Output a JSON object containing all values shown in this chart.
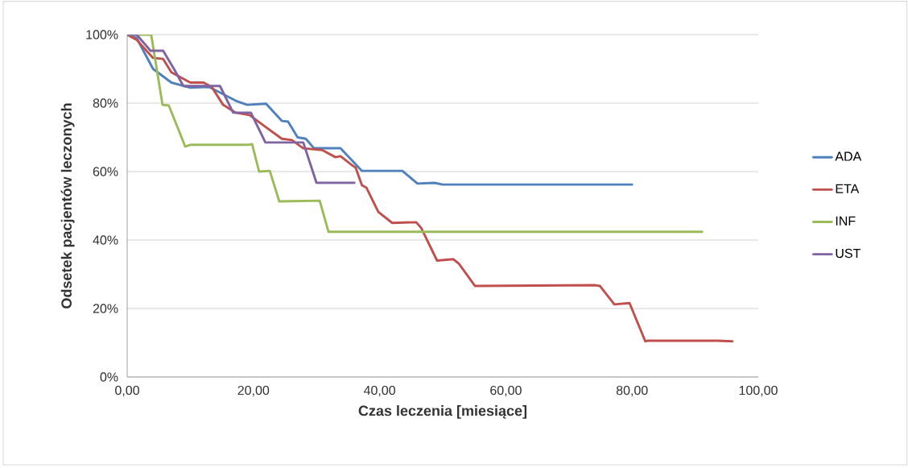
{
  "chart_data": {
    "type": "line",
    "xlabel": "Czas  leczenia [miesiące]",
    "ylabel": "Odsetek pacjentów leczonych",
    "xlim": [
      0,
      100
    ],
    "xticks": [
      {
        "value": 0,
        "label": "0,00"
      },
      {
        "value": 20,
        "label": "20,00"
      },
      {
        "value": 40,
        "label": "40,00"
      },
      {
        "value": 60,
        "label": "60,00"
      },
      {
        "value": 80,
        "label": "80,00"
      },
      {
        "value": 100,
        "label": "100,00"
      }
    ],
    "ylim": [
      0,
      100
    ],
    "yticks": [
      {
        "value": 0,
        "label": "0%"
      },
      {
        "value": 20,
        "label": "20%"
      },
      {
        "value": 40,
        "label": "40%"
      },
      {
        "value": 60,
        "label": "60%"
      },
      {
        "value": 80,
        "label": "80%"
      },
      {
        "value": 100,
        "label": "100%"
      }
    ],
    "grid": "y",
    "legend": "right",
    "marker": "none",
    "line_style": "solid",
    "series": [
      {
        "name": "ADA",
        "color": "#4f81bd",
        "x": [
          0,
          1.5,
          4.1,
          7.0,
          10,
          13,
          17.2,
          19,
          22,
          24.5,
          25.5,
          27,
          28.3,
          29.6,
          33.8,
          37.2,
          43.6,
          46,
          48.7,
          50,
          80
        ],
        "values": [
          100,
          99,
          90,
          86,
          84.5,
          84.7,
          80.7,
          79.5,
          79.8,
          74.8,
          74.6,
          70,
          69.6,
          66.8,
          66.8,
          60.2,
          60.2,
          56.5,
          56.7,
          56.2,
          56.2
        ]
      },
      {
        "name": "ETA",
        "color": "#c0504d",
        "x": [
          0,
          1.5,
          4.1,
          5.7,
          7,
          10,
          12.1,
          13.4,
          15.2,
          17.2,
          19.4,
          21.5,
          24.5,
          26.1,
          27.9,
          30.9,
          33,
          33.8,
          35.6,
          36.2,
          37.2,
          37.9,
          39.8,
          42,
          45.8,
          46.6,
          49.1,
          51.7,
          52.6,
          55.1,
          74.2,
          74.9,
          77.2,
          79.6,
          82.1,
          82.5,
          93.6,
          95.9
        ],
        "values": [
          100,
          98.5,
          93.2,
          92.9,
          89,
          86,
          86,
          84.7,
          79.5,
          77.2,
          76.5,
          73.6,
          69.6,
          69.2,
          66.8,
          66.3,
          64.2,
          64.5,
          61.9,
          61.2,
          56,
          55.3,
          48.2,
          45,
          45.2,
          43.5,
          34,
          34.4,
          33,
          26.6,
          26.8,
          26.6,
          21.2,
          21.6,
          10.4,
          10.6,
          10.6,
          10.4
        ]
      },
      {
        "name": "INF",
        "color": "#9bbb59",
        "x": [
          0,
          3.8,
          5.6,
          6.6,
          9.2,
          10,
          19,
          19.8,
          20.9,
          22.6,
          24.1,
          30.5,
          31.9,
          33,
          91.1
        ],
        "values": [
          100,
          100,
          79.5,
          79.3,
          67.3,
          67.8,
          67.8,
          68,
          60,
          60.2,
          51.3,
          51.5,
          42.4,
          42.4,
          42.4
        ]
      },
      {
        "name": "UST",
        "color": "#8064a2",
        "x": [
          0,
          1.5,
          3.7,
          5.7,
          7.5,
          8.9,
          14.7,
          16.8,
          19.6,
          21.9,
          27.9,
          30,
          30.9,
          36
        ],
        "values": [
          100,
          100,
          95.3,
          95.3,
          89.7,
          85,
          85,
          77.2,
          77.2,
          68.5,
          68.5,
          56.7,
          56.7,
          56.7
        ]
      }
    ]
  }
}
